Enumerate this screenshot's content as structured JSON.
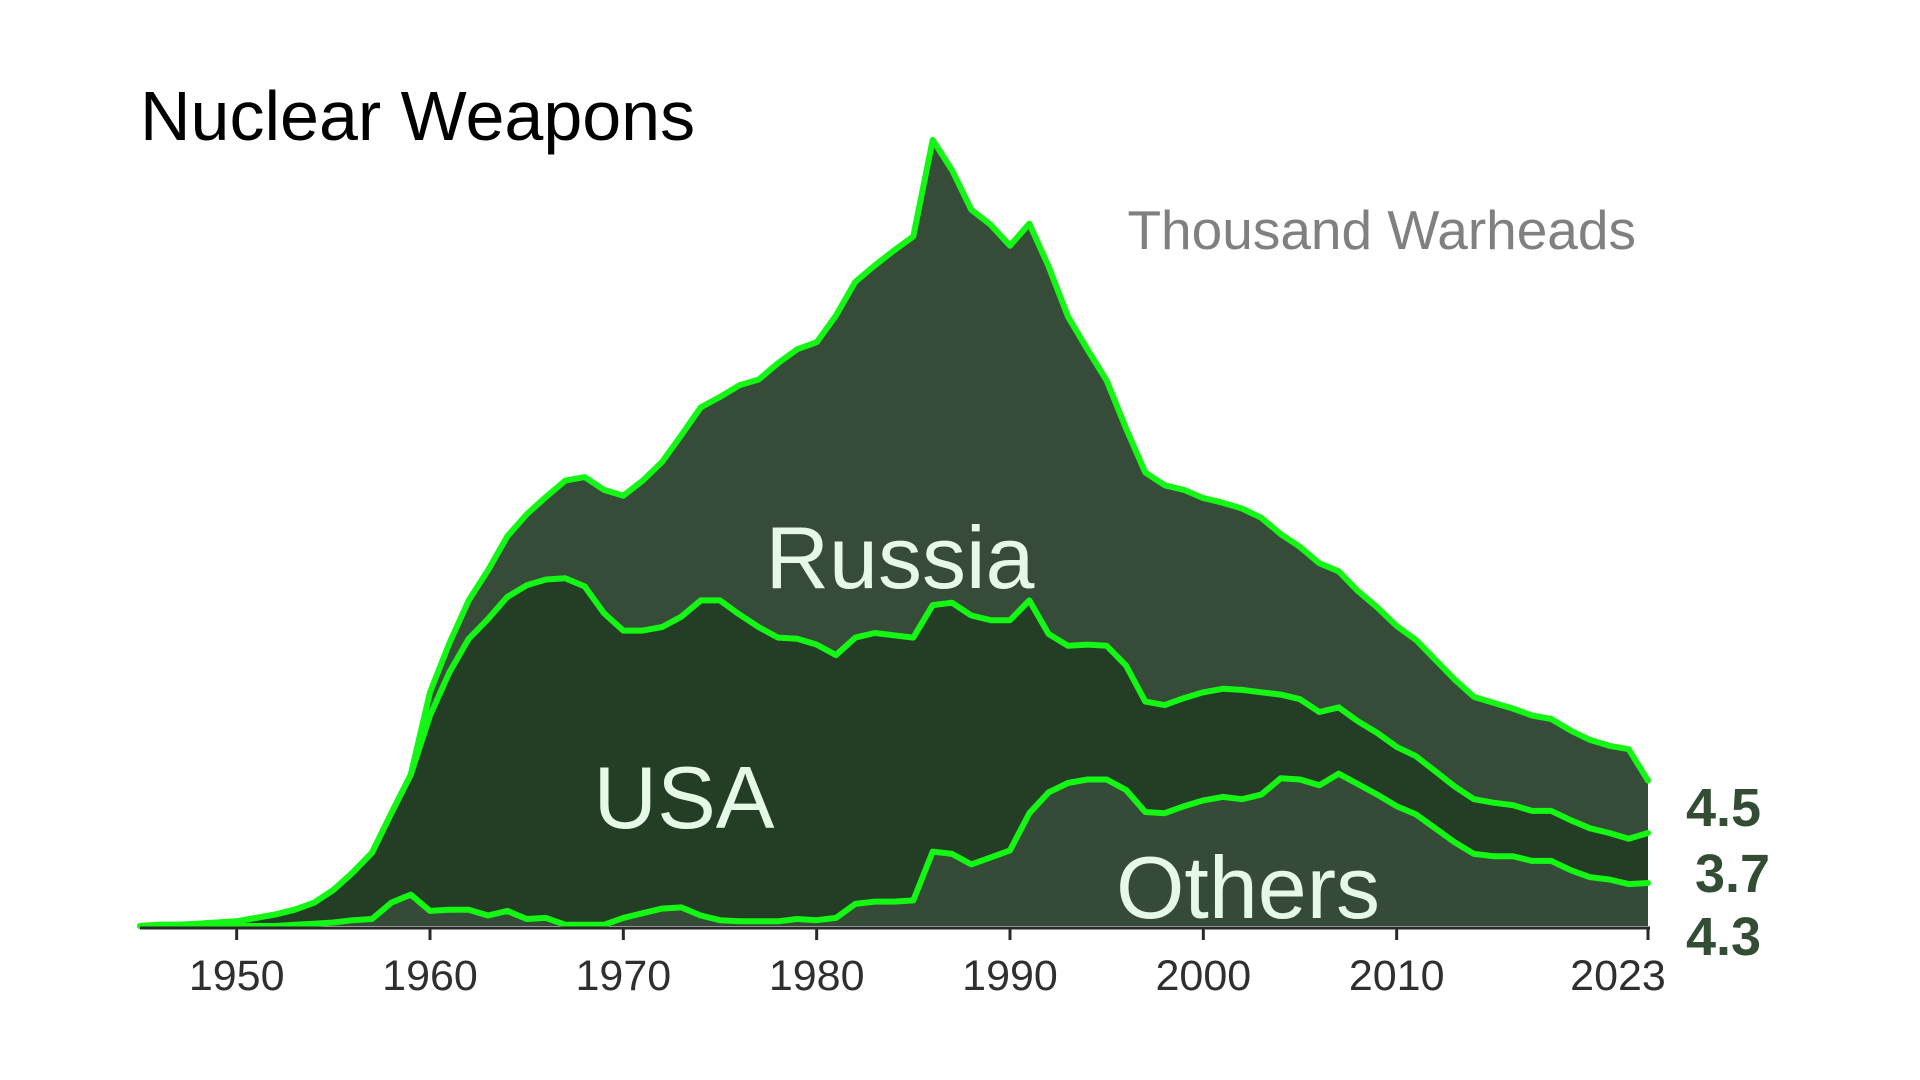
{
  "chart_data": {
    "type": "area",
    "stacked": true,
    "title": "Nuclear Weapons",
    "unit_label": "Thousand Warheads",
    "xlim": [
      1945,
      2023
    ],
    "ylim": [
      0,
      70
    ],
    "x_ticks": [
      "1950",
      "1960",
      "1970",
      "1980",
      "1990",
      "2000",
      "2010",
      "2023"
    ],
    "x": [
      1945,
      1946,
      1947,
      1948,
      1949,
      1950,
      1951,
      1952,
      1953,
      1954,
      1955,
      1956,
      1957,
      1958,
      1959,
      1960,
      1961,
      1962,
      1963,
      1964,
      1965,
      1966,
      1967,
      1968,
      1969,
      1970,
      1971,
      1972,
      1973,
      1974,
      1975,
      1976,
      1977,
      1978,
      1979,
      1980,
      1981,
      1982,
      1983,
      1984,
      1985,
      1986,
      1987,
      1988,
      1989,
      1990,
      1991,
      1992,
      1993,
      1994,
      1995,
      1996,
      1997,
      1998,
      1999,
      2000,
      2001,
      2002,
      2003,
      2004,
      2005,
      2006,
      2007,
      2008,
      2009,
      2010,
      2011,
      2012,
      2013,
      2014,
      2015,
      2016,
      2017,
      2018,
      2019,
      2020,
      2021,
      2022,
      2023
    ],
    "series": [
      {
        "name": "Others",
        "values": [
          0,
          0,
          0,
          0,
          0,
          0,
          0,
          0,
          0.1,
          0.2,
          0.3,
          0.5,
          0.6,
          2.0,
          2.7,
          1.3,
          1.4,
          1.4,
          0.9,
          1.3,
          0.6,
          0.7,
          0.1,
          0.1,
          0.1,
          0.7,
          1.1,
          1.5,
          1.6,
          0.9,
          0.5,
          0.4,
          0.4,
          0.4,
          0.6,
          0.5,
          0.7,
          1.9,
          2.1,
          2.1,
          2.2,
          6.4,
          6.2,
          5.3,
          5.9,
          6.5,
          9.7,
          11.5,
          12.3,
          12.6,
          12.6,
          11.7,
          9.8,
          9.7,
          10.3,
          10.8,
          11.1,
          10.9,
          11.3,
          12.7,
          12.6,
          12.1,
          13.1,
          12.2,
          11.3,
          10.3,
          9.6,
          8.4,
          7.2,
          6.2,
          6.0,
          6.0,
          5.6,
          5.6,
          4.8,
          4.2,
          4.0,
          3.6,
          3.7
        ]
      },
      {
        "name": "USA",
        "values": [
          0,
          0.1,
          0.1,
          0.2,
          0.3,
          0.4,
          0.7,
          1.0,
          1.3,
          1.8,
          2.8,
          4.1,
          5.7,
          7.7,
          10.3,
          16.8,
          20.4,
          23.3,
          25.5,
          27.0,
          28.7,
          29.1,
          29.8,
          29.1,
          26.8,
          24.7,
          24.3,
          24.2,
          25.0,
          27.1,
          27.5,
          26.4,
          25.3,
          24.4,
          24.1,
          23.7,
          22.6,
          22.9,
          23.1,
          22.9,
          22.6,
          21.2,
          21.6,
          21.4,
          20.4,
          19.8,
          18.3,
          13.6,
          11.8,
          11.6,
          11.5,
          10.7,
          9.5,
          9.3,
          9.3,
          9.3,
          9.3,
          9.4,
          8.8,
          7.2,
          6.9,
          6.3,
          5.7,
          5.4,
          5.3,
          5.1,
          5.0,
          4.9,
          4.8,
          4.7,
          4.6,
          4.4,
          4.3,
          4.3,
          4.3,
          4.2,
          4.0,
          3.9,
          4.3
        ]
      },
      {
        "name": "Russia",
        "values": [
          0,
          0,
          0,
          0,
          0,
          0,
          0,
          0,
          0,
          0,
          0,
          0,
          0,
          0,
          0,
          2.0,
          2.5,
          3.3,
          4.2,
          5.2,
          6.1,
          7.1,
          8.4,
          9.4,
          10.6,
          11.6,
          12.9,
          14.2,
          15.6,
          16.6,
          17.5,
          19.7,
          21.3,
          23.6,
          24.9,
          26.0,
          29.2,
          30.6,
          31.6,
          33.1,
          34.5,
          40.0,
          37.2,
          34.9,
          34.0,
          32.2,
          32.4,
          31.6,
          28.3,
          25.4,
          22.8,
          20.4,
          19.7,
          18.9,
          17.9,
          16.7,
          16.0,
          15.6,
          15.0,
          13.8,
          13.1,
          12.8,
          11.7,
          11.2,
          10.8,
          10.4,
          10.0,
          9.6,
          9.2,
          8.8,
          8.6,
          8.3,
          8.2,
          7.9,
          7.7,
          7.6,
          7.5,
          7.7,
          4.5
        ]
      }
    ],
    "end_labels": [
      "4.5",
      "3.7",
      "4.3"
    ],
    "colors": {
      "others_fill": "#354b37",
      "usa_fill": "#243d25",
      "russia_fill": "#364c38",
      "outline": "#14f714",
      "label_text": "#e6f8e6",
      "end_label": "#334c34"
    }
  }
}
